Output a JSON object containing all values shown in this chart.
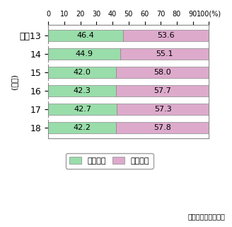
{
  "years": [
    "平成13",
    "14",
    "15",
    "16",
    "17",
    "18"
  ],
  "fixed": [
    46.4,
    44.9,
    42.0,
    42.3,
    42.7,
    42.2
  ],
  "mobile": [
    53.6,
    55.1,
    58.0,
    57.7,
    57.3,
    57.8
  ],
  "fixed_color": "#99ddaa",
  "mobile_color": "#ddaacc",
  "fixed_label": "固定通信",
  "mobile_label": "移動通信",
  "ylabel": "(年度)",
  "note": "各社資料により作成",
  "xlim": [
    0,
    100
  ],
  "bar_height": 0.6,
  "xtick_labels": [
    "0",
    "10",
    "20",
    "30",
    "40",
    "50",
    "60",
    "70",
    "80",
    "90",
    "100(%)"
  ],
  "xtick_values": [
    0,
    10,
    20,
    30,
    40,
    50,
    60,
    70,
    80,
    90,
    100
  ]
}
